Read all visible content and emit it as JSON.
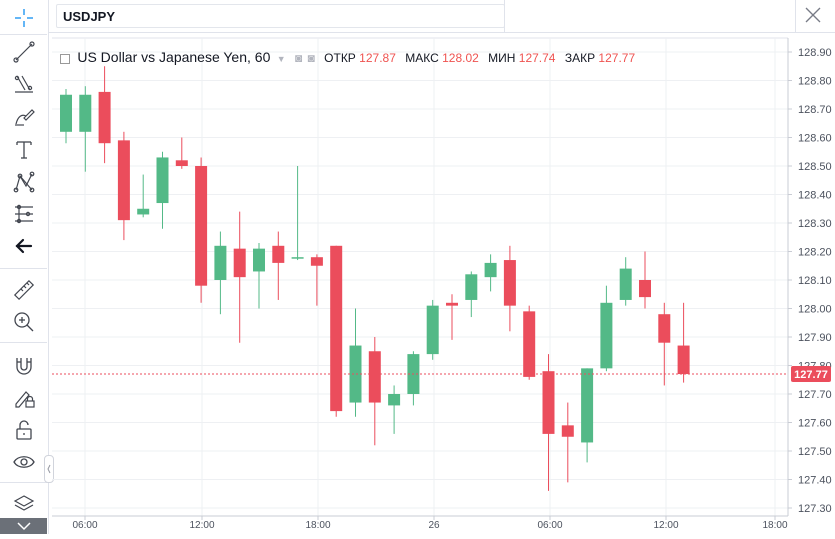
{
  "header": {
    "symbol": "USDJPY"
  },
  "legend": {
    "title": "US Dollar vs Japanese Yen, 60",
    "open_label": "ОТКР",
    "open_value": "127.87",
    "high_label": "МАКС",
    "high_value": "128.02",
    "low_label": "МИН",
    "low_value": "127.74",
    "close_label": "ЗАКР",
    "close_value": "127.77"
  },
  "toolbar": {
    "tools": [
      "crosshair-icon",
      "trend-line-icon",
      "fib-icon",
      "brush-icon",
      "text-icon",
      "pattern-icon",
      "measure-fork-icon",
      "arrow-left-icon",
      "ruler-icon",
      "zoom-in-icon",
      "magnet-icon",
      "lock-draw-icon",
      "unlock-icon",
      "eye-icon",
      "layers-icon",
      "chevron-down-icon"
    ]
  },
  "colors": {
    "up": "#53b987",
    "down": "#eb4d5c",
    "grid": "#eef0f3",
    "axis_text": "#4c525e",
    "price_line": "#eb4d5c"
  },
  "chart_data": {
    "type": "candlestick",
    "title": "US Dollar vs Japanese Yen, 60",
    "current_price": "127.77",
    "ylim": [
      127.25,
      128.95
    ],
    "y_ticks": [
      "128.90",
      "128.80",
      "128.70",
      "128.60",
      "128.50",
      "128.40",
      "128.30",
      "128.20",
      "128.10",
      "128.00",
      "127.90",
      "127.80",
      "127.70",
      "127.60",
      "127.50",
      "127.40",
      "127.30"
    ],
    "x_ticks": [
      "06:00",
      "12:00",
      "18:00",
      "26",
      "06:00",
      "12:00",
      "18:00"
    ],
    "candles": [
      {
        "o": 128.62,
        "h": 128.77,
        "l": 128.58,
        "c": 128.75
      },
      {
        "o": 128.62,
        "h": 128.78,
        "l": 128.48,
        "c": 128.75
      },
      {
        "o": 128.76,
        "h": 128.85,
        "l": 128.51,
        "c": 128.58
      },
      {
        "o": 128.59,
        "h": 128.62,
        "l": 128.24,
        "c": 128.31
      },
      {
        "o": 128.33,
        "h": 128.47,
        "l": 128.32,
        "c": 128.35
      },
      {
        "o": 128.37,
        "h": 128.55,
        "l": 128.28,
        "c": 128.53
      },
      {
        "o": 128.52,
        "h": 128.6,
        "l": 128.49,
        "c": 128.5
      },
      {
        "o": 128.5,
        "h": 128.53,
        "l": 128.02,
        "c": 128.08
      },
      {
        "o": 128.1,
        "h": 128.27,
        "l": 127.98,
        "c": 128.22
      },
      {
        "o": 128.21,
        "h": 128.34,
        "l": 127.88,
        "c": 128.11
      },
      {
        "o": 128.13,
        "h": 128.23,
        "l": 128.0,
        "c": 128.21
      },
      {
        "o": 128.22,
        "h": 128.27,
        "l": 128.03,
        "c": 128.16
      },
      {
        "o": 128.18,
        "h": 128.5,
        "l": 128.17,
        "c": 128.18
      },
      {
        "o": 128.18,
        "h": 128.19,
        "l": 128.01,
        "c": 128.15
      },
      {
        "o": 128.22,
        "h": 128.22,
        "l": 127.62,
        "c": 127.64
      },
      {
        "o": 127.67,
        "h": 128.0,
        "l": 127.62,
        "c": 127.87
      },
      {
        "o": 127.85,
        "h": 127.9,
        "l": 127.52,
        "c": 127.67
      },
      {
        "o": 127.66,
        "h": 127.73,
        "l": 127.56,
        "c": 127.7
      },
      {
        "o": 127.7,
        "h": 127.85,
        "l": 127.66,
        "c": 127.84
      },
      {
        "o": 127.84,
        "h": 128.03,
        "l": 127.82,
        "c": 128.01
      },
      {
        "o": 128.02,
        "h": 128.05,
        "l": 127.89,
        "c": 128.01
      },
      {
        "o": 128.03,
        "h": 128.13,
        "l": 127.97,
        "c": 128.12
      },
      {
        "o": 128.11,
        "h": 128.19,
        "l": 128.06,
        "c": 128.16
      },
      {
        "o": 128.17,
        "h": 128.22,
        "l": 127.92,
        "c": 128.01
      },
      {
        "o": 127.99,
        "h": 128.01,
        "l": 127.75,
        "c": 127.76
      },
      {
        "o": 127.78,
        "h": 127.84,
        "l": 127.36,
        "c": 127.56
      },
      {
        "o": 127.59,
        "h": 127.67,
        "l": 127.39,
        "c": 127.55
      },
      {
        "o": 127.53,
        "h": 127.79,
        "l": 127.46,
        "c": 127.79
      },
      {
        "o": 127.79,
        "h": 128.08,
        "l": 127.78,
        "c": 128.02
      },
      {
        "o": 128.03,
        "h": 128.18,
        "l": 128.01,
        "c": 128.14
      },
      {
        "o": 128.1,
        "h": 128.2,
        "l": 128.0,
        "c": 128.04
      },
      {
        "o": 127.98,
        "h": 128.02,
        "l": 127.73,
        "c": 127.88
      },
      {
        "o": 127.87,
        "h": 128.02,
        "l": 127.74,
        "c": 127.77
      }
    ]
  }
}
